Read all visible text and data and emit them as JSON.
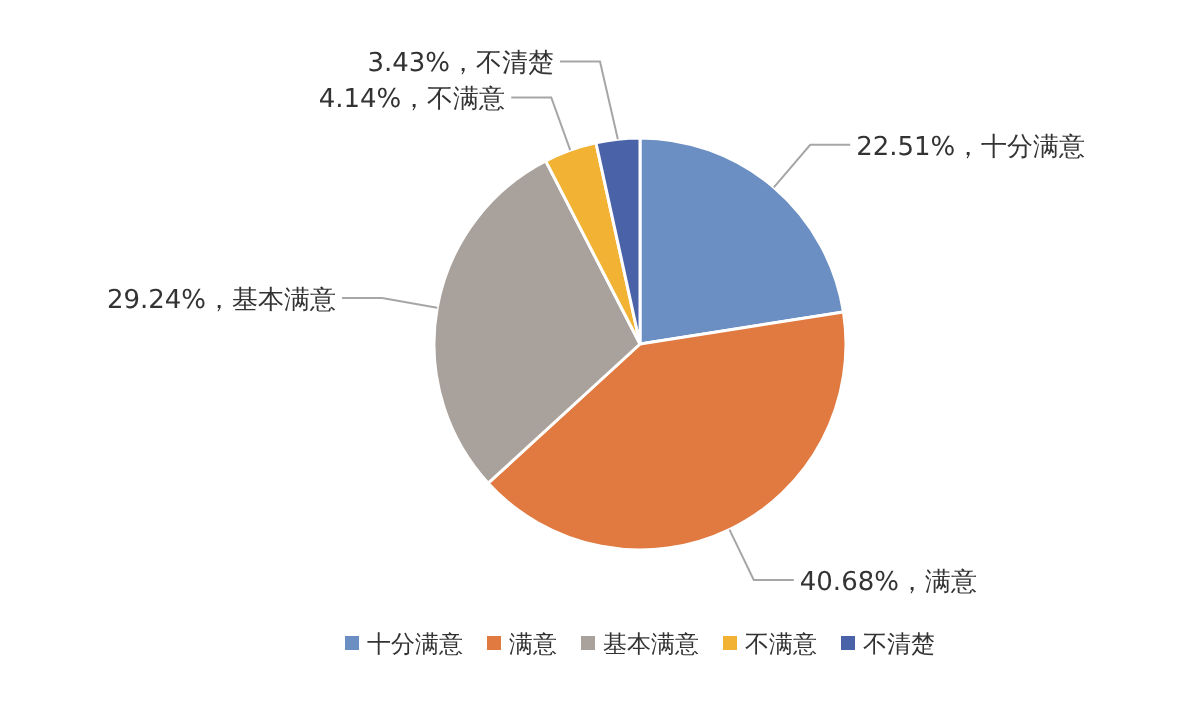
{
  "chart_data": {
    "type": "pie",
    "categories": [
      "十分满意",
      "满意",
      "基本满意",
      "不满意",
      "不清楚"
    ],
    "values": [
      22.51,
      40.68,
      29.24,
      4.14,
      3.43
    ],
    "colors": [
      "#6b8fc2",
      "#e07a40",
      "#a9a19b",
      "#f2b233",
      "#4a62a8"
    ],
    "value_labels": [
      "22.51%，十分满意",
      "40.68%，满意",
      "29.24%，基本满意",
      "4.14%，不满意",
      "3.43%，不清楚"
    ],
    "legend": "bottom"
  }
}
